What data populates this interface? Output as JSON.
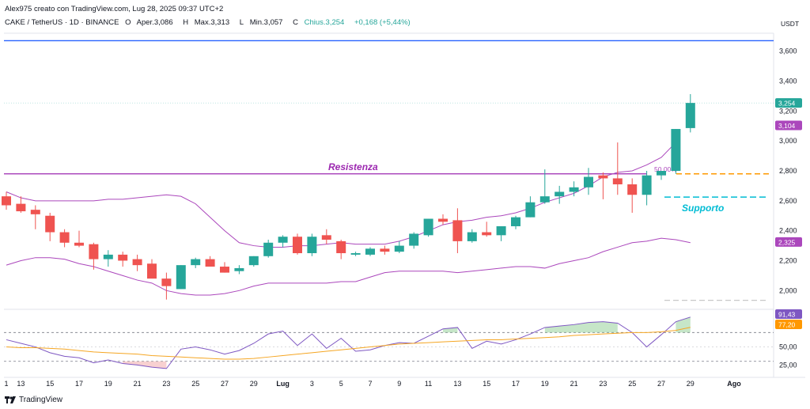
{
  "header": {
    "attribution": "Alex975 creato con TradingView.com, Lug 28, 2025 09:37 UTC+2",
    "symbol": "CAKE / TetherUS · 1D · BINANCE",
    "open_label": "O",
    "open": "Aper.3,086",
    "high_label": "H",
    "high": "Max.3,313",
    "low_label": "L",
    "low": "Min.3,057",
    "close_label": "C",
    "close": "Chius.3,254",
    "change": "+0,168 (+5,44%)"
  },
  "footer": {
    "brand": "TradingView"
  },
  "chart_data": {
    "type": "candlestick",
    "currency": "USDT",
    "price_axis": {
      "min": 1.88,
      "max": 3.72,
      "ticks": [
        2.0,
        2.2,
        2.4,
        2.6,
        2.8,
        3.0,
        3.2,
        3.4,
        3.6
      ],
      "tick_labels": [
        "2,000",
        "2,200",
        "2,400",
        "2,600",
        "2,800",
        "3,000",
        "3,200",
        "3,400",
        "3,600"
      ]
    },
    "x_labels": [
      "1",
      "13",
      "15",
      "17",
      "19",
      "21",
      "23",
      "25",
      "27",
      "29",
      "Lug",
      "3",
      "5",
      "7",
      "9",
      "11",
      "13",
      "15",
      "17",
      "19",
      "21",
      "23",
      "25",
      "27",
      "29",
      "Ago"
    ],
    "x_label_index": [
      0,
      1,
      3,
      5,
      7,
      9,
      11,
      13,
      15,
      17,
      19,
      21,
      23,
      25,
      27,
      29,
      31,
      33,
      35,
      37,
      39,
      41,
      43,
      45,
      47,
      50
    ],
    "candles": [
      {
        "o": 2.63,
        "h": 2.66,
        "l": 2.54,
        "c": 2.57
      },
      {
        "o": 2.58,
        "h": 2.63,
        "l": 2.52,
        "c": 2.53
      },
      {
        "o": 2.54,
        "h": 2.57,
        "l": 2.41,
        "c": 2.51
      },
      {
        "o": 2.5,
        "h": 2.52,
        "l": 2.33,
        "c": 2.39
      },
      {
        "o": 2.39,
        "h": 2.41,
        "l": 2.29,
        "c": 2.32
      },
      {
        "o": 2.32,
        "h": 2.4,
        "l": 2.29,
        "c": 2.3
      },
      {
        "o": 2.31,
        "h": 2.32,
        "l": 2.14,
        "c": 2.21
      },
      {
        "o": 2.21,
        "h": 2.27,
        "l": 2.16,
        "c": 2.24
      },
      {
        "o": 2.24,
        "h": 2.26,
        "l": 2.16,
        "c": 2.2
      },
      {
        "o": 2.21,
        "h": 2.24,
        "l": 2.13,
        "c": 2.17
      },
      {
        "o": 2.18,
        "h": 2.21,
        "l": 2.09,
        "c": 2.08
      },
      {
        "o": 2.08,
        "h": 2.12,
        "l": 1.94,
        "c": 2.03
      },
      {
        "o": 2.01,
        "h": 2.17,
        "l": 2.01,
        "c": 2.17
      },
      {
        "o": 2.17,
        "h": 2.22,
        "l": 2.15,
        "c": 2.21
      },
      {
        "o": 2.21,
        "h": 2.23,
        "l": 2.17,
        "c": 2.16
      },
      {
        "o": 2.16,
        "h": 2.19,
        "l": 2.12,
        "c": 2.12
      },
      {
        "o": 2.13,
        "h": 2.17,
        "l": 2.11,
        "c": 2.15
      },
      {
        "o": 2.17,
        "h": 2.23,
        "l": 2.16,
        "c": 2.23
      },
      {
        "o": 2.23,
        "h": 2.34,
        "l": 2.22,
        "c": 2.32
      },
      {
        "o": 2.32,
        "h": 2.37,
        "l": 2.29,
        "c": 2.36
      },
      {
        "o": 2.36,
        "h": 2.38,
        "l": 2.24,
        "c": 2.25
      },
      {
        "o": 2.25,
        "h": 2.38,
        "l": 2.23,
        "c": 2.36
      },
      {
        "o": 2.37,
        "h": 2.41,
        "l": 2.31,
        "c": 2.34
      },
      {
        "o": 2.33,
        "h": 2.34,
        "l": 2.21,
        "c": 2.25
      },
      {
        "o": 2.24,
        "h": 2.26,
        "l": 2.23,
        "c": 2.25
      },
      {
        "o": 2.24,
        "h": 2.29,
        "l": 2.23,
        "c": 2.28
      },
      {
        "o": 2.28,
        "h": 2.3,
        "l": 2.24,
        "c": 2.26
      },
      {
        "o": 2.26,
        "h": 2.33,
        "l": 2.25,
        "c": 2.3
      },
      {
        "o": 2.3,
        "h": 2.39,
        "l": 2.28,
        "c": 2.38
      },
      {
        "o": 2.37,
        "h": 2.48,
        "l": 2.36,
        "c": 2.48
      },
      {
        "o": 2.48,
        "h": 2.51,
        "l": 2.44,
        "c": 2.46
      },
      {
        "o": 2.47,
        "h": 2.55,
        "l": 2.25,
        "c": 2.33
      },
      {
        "o": 2.33,
        "h": 2.41,
        "l": 2.32,
        "c": 2.39
      },
      {
        "o": 2.39,
        "h": 2.46,
        "l": 2.36,
        "c": 2.37
      },
      {
        "o": 2.37,
        "h": 2.43,
        "l": 2.33,
        "c": 2.43
      },
      {
        "o": 2.43,
        "h": 2.5,
        "l": 2.41,
        "c": 2.49
      },
      {
        "o": 2.49,
        "h": 2.63,
        "l": 2.49,
        "c": 2.59
      },
      {
        "o": 2.59,
        "h": 2.81,
        "l": 2.58,
        "c": 2.63
      },
      {
        "o": 2.63,
        "h": 2.7,
        "l": 2.58,
        "c": 2.66
      },
      {
        "o": 2.66,
        "h": 2.73,
        "l": 2.63,
        "c": 2.69
      },
      {
        "o": 2.69,
        "h": 2.82,
        "l": 2.64,
        "c": 2.76
      },
      {
        "o": 2.77,
        "h": 2.79,
        "l": 2.61,
        "c": 2.75
      },
      {
        "o": 2.75,
        "h": 2.99,
        "l": 2.64,
        "c": 2.71
      },
      {
        "o": 2.71,
        "h": 2.75,
        "l": 2.52,
        "c": 2.64
      },
      {
        "o": 2.64,
        "h": 2.8,
        "l": 2.57,
        "c": 2.77
      },
      {
        "o": 2.77,
        "h": 2.8,
        "l": 2.74,
        "c": 2.8
      },
      {
        "o": 2.8,
        "h": 3.08,
        "l": 2.78,
        "c": 3.08
      },
      {
        "o": 3.086,
        "h": 3.313,
        "l": 3.057,
        "c": 3.254
      }
    ],
    "bollinger": {
      "upper": [
        2.66,
        2.62,
        2.6,
        2.6,
        2.6,
        2.6,
        2.6,
        2.61,
        2.61,
        2.62,
        2.63,
        2.64,
        2.63,
        2.58,
        2.49,
        2.4,
        2.32,
        2.3,
        2.29,
        2.29,
        2.3,
        2.3,
        2.31,
        2.32,
        2.31,
        2.31,
        2.31,
        2.33,
        2.36,
        2.4,
        2.44,
        2.46,
        2.47,
        2.49,
        2.5,
        2.52,
        2.55,
        2.59,
        2.62,
        2.65,
        2.7,
        2.76,
        2.79,
        2.8,
        2.84,
        2.89,
        2.99,
        null
      ],
      "basis": [
        null,
        null,
        null,
        null,
        null,
        null,
        null,
        null,
        null,
        null,
        null,
        null,
        null,
        null,
        null,
        null,
        null,
        null,
        null,
        null,
        null,
        null,
        null,
        null,
        null,
        null,
        null,
        null,
        null,
        null,
        null,
        null,
        null,
        null,
        null,
        null,
        null,
        null,
        null,
        null,
        null,
        null,
        null,
        null,
        null,
        null,
        null,
        null
      ],
      "lower": [
        2.17,
        2.2,
        2.22,
        2.22,
        2.21,
        2.18,
        2.16,
        2.13,
        2.1,
        2.07,
        2.05,
        2.0,
        1.98,
        1.97,
        1.97,
        1.98,
        2.0,
        2.03,
        2.05,
        2.05,
        2.05,
        2.05,
        2.05,
        2.06,
        2.06,
        2.09,
        2.12,
        2.13,
        2.13,
        2.13,
        2.13,
        2.12,
        2.13,
        2.14,
        2.15,
        2.16,
        2.16,
        2.15,
        2.18,
        2.2,
        2.22,
        2.26,
        2.29,
        2.32,
        2.33,
        2.35,
        2.34,
        2.32
      ]
    },
    "levels": [
      {
        "label": "Resistenza",
        "price": 2.78,
        "color": "#9c27b0",
        "style": "solid"
      },
      {
        "label": "Supporto",
        "price": 2.625,
        "color": "#00bcd4",
        "style": "dashed"
      },
      {
        "label": "50,00%",
        "price": 2.78,
        "color": "#ff9800",
        "style": "dashed"
      },
      {
        "label": "",
        "price": 3.67,
        "color": "#2962ff",
        "style": "solid"
      },
      {
        "label": "",
        "price": 1.935,
        "color": "#c8c8c8",
        "style": "dashed"
      }
    ],
    "price_badges": [
      {
        "text": "3,254",
        "price": 3.254,
        "color": "#26a69a"
      },
      {
        "text": "3,104",
        "price": 3.104,
        "color": "#ab47bc"
      },
      {
        "text": "2,325",
        "price": 2.325,
        "color": "#ab47bc"
      }
    ],
    "rsi": {
      "axis_ticks": [
        25,
        50
      ],
      "tick_labels": [
        "25,00",
        "50,00"
      ],
      "bands": [
        70,
        30
      ],
      "values": [
        60,
        55,
        50,
        42,
        37,
        35,
        28,
        32,
        27,
        25,
        22,
        20,
        47,
        50,
        46,
        40,
        45,
        55,
        68,
        72,
        52,
        68,
        48,
        62,
        44,
        46,
        52,
        56,
        55,
        65,
        75,
        77,
        48,
        58,
        54,
        60,
        68,
        77,
        79,
        81,
        84,
        85,
        83,
        70,
        50,
        67,
        85,
        91.43
      ],
      "ma": [
        50,
        49,
        49,
        48,
        47,
        45,
        43,
        42,
        41,
        40,
        38,
        37,
        36,
        35,
        34,
        33,
        33,
        34,
        36,
        38,
        40,
        42,
        44,
        46,
        48,
        50,
        52,
        54,
        55,
        56,
        57,
        58,
        59,
        60,
        60,
        61,
        62,
        63,
        64,
        66,
        67,
        68,
        69,
        70,
        70,
        71,
        73,
        77.2
      ],
      "badges": [
        {
          "text": "91,43",
          "value": 91.43,
          "color": "#7e57c2"
        },
        {
          "text": "77,20",
          "value": 77.2,
          "color": "#ff9800"
        }
      ]
    }
  }
}
